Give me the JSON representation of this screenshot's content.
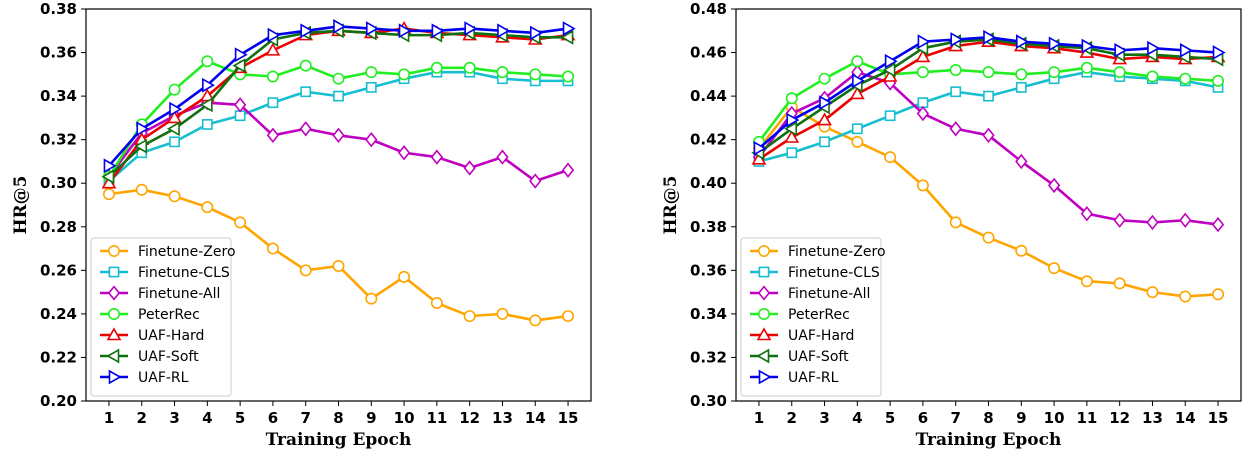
{
  "chart_data": [
    {
      "type": "line",
      "title": "",
      "xlabel": "Training Epoch",
      "ylabel": "HR@5",
      "x": [
        1,
        2,
        3,
        4,
        5,
        6,
        7,
        8,
        9,
        10,
        11,
        12,
        13,
        14,
        15
      ],
      "ylim": [
        0.2,
        0.38
      ],
      "yticks": [
        "0.20",
        "0.22",
        "0.24",
        "0.26",
        "0.28",
        "0.30",
        "0.32",
        "0.34",
        "0.36",
        "0.38"
      ],
      "legend_position": "lower-left",
      "grid": false,
      "series": [
        {
          "name": "Finetune-Zero",
          "color": "#ffa500",
          "marker": "circle",
          "values": [
            0.295,
            0.297,
            0.294,
            0.289,
            0.282,
            0.27,
            0.26,
            0.262,
            0.247,
            0.257,
            0.245,
            0.239,
            0.24,
            0.237,
            0.239
          ]
        },
        {
          "name": "Finetune-CLS",
          "color": "#17becf",
          "marker": "square",
          "values": [
            0.301,
            0.314,
            0.319,
            0.327,
            0.331,
            0.337,
            0.342,
            0.34,
            0.344,
            0.348,
            0.351,
            0.351,
            0.348,
            0.347,
            0.347
          ]
        },
        {
          "name": "Finetune-All",
          "color": "#c000c0",
          "marker": "diamond",
          "values": [
            0.303,
            0.323,
            0.331,
            0.337,
            0.336,
            0.322,
            0.325,
            0.322,
            0.32,
            0.314,
            0.312,
            0.307,
            0.312,
            0.301,
            0.306
          ]
        },
        {
          "name": "PeterRec",
          "color": "#22ee22",
          "marker": "circle",
          "values": [
            0.303,
            0.327,
            0.343,
            0.356,
            0.35,
            0.349,
            0.354,
            0.348,
            0.351,
            0.35,
            0.353,
            0.353,
            0.351,
            0.35,
            0.349
          ]
        },
        {
          "name": "UAF-Hard",
          "color": "#ee0000",
          "marker": "triangle-up",
          "values": [
            0.3,
            0.32,
            0.33,
            0.34,
            0.353,
            0.361,
            0.368,
            0.37,
            0.369,
            0.371,
            0.369,
            0.368,
            0.367,
            0.366,
            0.368
          ]
        },
        {
          "name": "UAF-Soft",
          "color": "#107010",
          "marker": "triangle-left",
          "values": [
            0.303,
            0.317,
            0.325,
            0.336,
            0.354,
            0.366,
            0.369,
            0.37,
            0.369,
            0.368,
            0.368,
            0.369,
            0.368,
            0.367,
            0.367
          ]
        },
        {
          "name": "UAF-RL",
          "color": "#0000ee",
          "marker": "triangle-right",
          "values": [
            0.308,
            0.325,
            0.334,
            0.345,
            0.359,
            0.368,
            0.37,
            0.372,
            0.371,
            0.37,
            0.37,
            0.371,
            0.37,
            0.369,
            0.371
          ]
        }
      ]
    },
    {
      "type": "line",
      "title": "",
      "xlabel": "Training Epoch",
      "ylabel": "HR@5",
      "x": [
        1,
        2,
        3,
        4,
        5,
        6,
        7,
        8,
        9,
        10,
        11,
        12,
        13,
        14,
        15
      ],
      "ylim": [
        0.3,
        0.48
      ],
      "yticks": [
        "0.30",
        "0.32",
        "0.34",
        "0.36",
        "0.38",
        "0.40",
        "0.42",
        "0.44",
        "0.46",
        "0.48"
      ],
      "legend_position": "lower-left",
      "grid": false,
      "series": [
        {
          "name": "Finetune-Zero",
          "color": "#ffa500",
          "marker": "circle",
          "values": [
            0.416,
            0.435,
            0.426,
            0.419,
            0.412,
            0.399,
            0.382,
            0.375,
            0.369,
            0.361,
            0.355,
            0.354,
            0.35,
            0.348,
            0.349
          ]
        },
        {
          "name": "Finetune-CLS",
          "color": "#17becf",
          "marker": "square",
          "values": [
            0.41,
            0.414,
            0.419,
            0.425,
            0.431,
            0.437,
            0.442,
            0.44,
            0.444,
            0.448,
            0.451,
            0.449,
            0.448,
            0.447,
            0.444
          ]
        },
        {
          "name": "Finetune-All",
          "color": "#c000c0",
          "marker": "diamond",
          "values": [
            0.412,
            0.432,
            0.439,
            0.451,
            0.446,
            0.432,
            0.425,
            0.422,
            0.41,
            0.399,
            0.386,
            0.383,
            0.382,
            0.383,
            0.381
          ]
        },
        {
          "name": "PeterRec",
          "color": "#22ee22",
          "marker": "circle",
          "values": [
            0.419,
            0.439,
            0.448,
            0.456,
            0.45,
            0.451,
            0.452,
            0.451,
            0.45,
            0.451,
            0.453,
            0.451,
            0.449,
            0.448,
            0.447
          ]
        },
        {
          "name": "UAF-Hard",
          "color": "#ee0000",
          "marker": "triangle-up",
          "values": [
            0.411,
            0.421,
            0.429,
            0.441,
            0.449,
            0.458,
            0.463,
            0.465,
            0.463,
            0.462,
            0.46,
            0.457,
            0.458,
            0.457,
            0.458
          ]
        },
        {
          "name": "UAF-Soft",
          "color": "#107010",
          "marker": "triangle-left",
          "values": [
            0.414,
            0.425,
            0.435,
            0.445,
            0.452,
            0.462,
            0.465,
            0.466,
            0.464,
            0.463,
            0.462,
            0.459,
            0.459,
            0.458,
            0.457
          ]
        },
        {
          "name": "UAF-RL",
          "color": "#0000ee",
          "marker": "triangle-right",
          "values": [
            0.416,
            0.429,
            0.437,
            0.447,
            0.456,
            0.465,
            0.466,
            0.467,
            0.465,
            0.464,
            0.463,
            0.461,
            0.462,
            0.461,
            0.46
          ]
        }
      ]
    }
  ]
}
